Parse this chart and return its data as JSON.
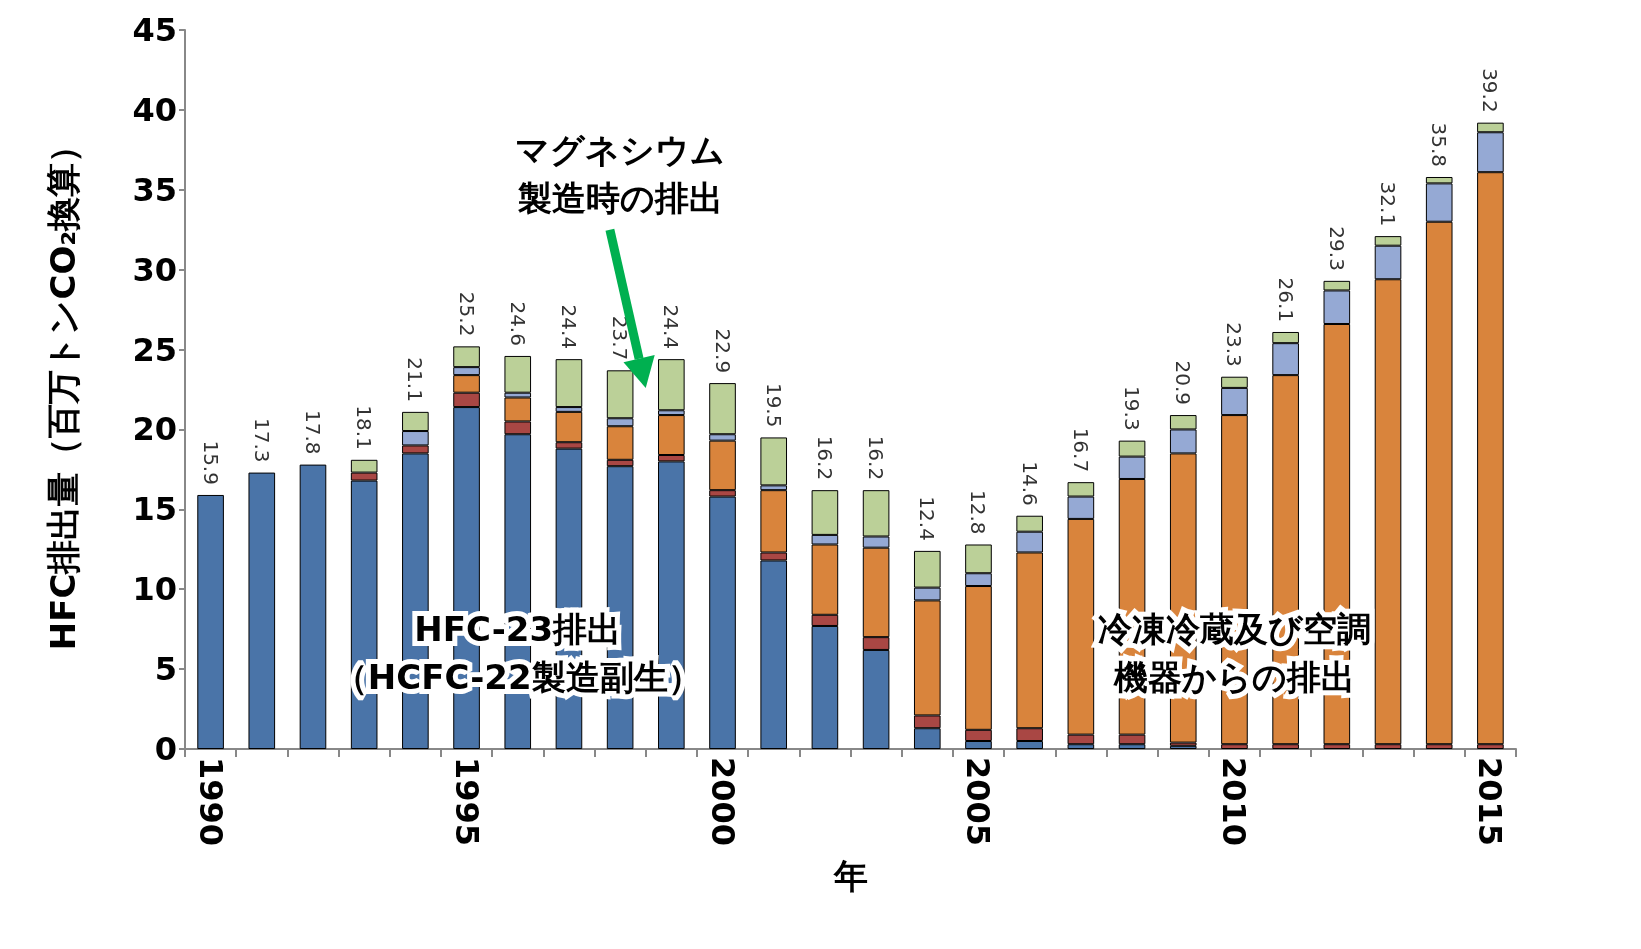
{
  "chart_data": {
    "type": "bar",
    "stacked": true,
    "xlabel": "年",
    "ylabel": "HFC排出量（百万トンCO₂換算）",
    "categories": [
      "1990",
      null,
      null,
      null,
      null,
      "1995",
      null,
      null,
      null,
      null,
      "2000",
      null,
      null,
      null,
      null,
      "2005",
      null,
      null,
      null,
      null,
      "2010",
      null,
      null,
      null,
      null,
      "2015"
    ],
    "series": [
      {
        "color": "#4a74a8",
        "values": [
          15.9,
          17.3,
          17.8,
          16.8,
          18.5,
          21.4,
          19.7,
          18.8,
          17.7,
          18.0,
          15.8,
          11.8,
          7.7,
          6.2,
          1.3,
          0.5,
          0.5,
          0.3,
          0.3,
          0.2,
          null,
          null,
          null,
          null,
          null,
          null
        ]
      },
      {
        "color": "#a94744",
        "values": [
          null,
          null,
          null,
          0.5,
          0.5,
          0.9,
          0.8,
          0.4,
          0.4,
          0.4,
          0.4,
          0.5,
          0.7,
          0.8,
          0.8,
          0.7,
          0.8,
          0.6,
          0.6,
          0.2,
          0.3,
          0.3,
          0.3,
          0.3,
          0.3,
          0.3
        ]
      },
      {
        "color": "#d9843c",
        "values": [
          null,
          null,
          null,
          null,
          null,
          1.1,
          1.5,
          1.9,
          2.1,
          2.5,
          3.1,
          3.9,
          4.4,
          5.6,
          7.2,
          9.0,
          11.0,
          13.5,
          16.0,
          18.1,
          20.6,
          23.1,
          26.3,
          29.1,
          32.7,
          35.8
        ]
      },
      {
        "color": "#95a9d4",
        "values": [
          null,
          null,
          null,
          null,
          0.9,
          0.5,
          0.3,
          0.3,
          0.5,
          0.3,
          0.4,
          0.3,
          0.6,
          0.7,
          0.8,
          0.8,
          1.3,
          1.4,
          1.4,
          1.5,
          1.7,
          2.0,
          2.1,
          2.1,
          2.4,
          2.5
        ]
      },
      {
        "color": "#bbd098",
        "values": [
          null,
          null,
          null,
          0.8,
          1.2,
          1.3,
          2.3,
          3.0,
          3.0,
          3.2,
          3.2,
          3.0,
          2.8,
          2.9,
          2.3,
          1.8,
          1.0,
          0.9,
          1.0,
          0.9,
          0.7,
          0.7,
          0.6,
          0.6,
          0.4,
          0.6
        ]
      }
    ],
    "totals": [
      "15.9",
      "17.3",
      "17.8",
      "18.1",
      "21.1",
      "25.2",
      "24.6",
      "24.4",
      "23.7",
      "24.4",
      "22.9",
      "19.5",
      "16.2",
      "16.2",
      "12.4",
      "12.8",
      "14.6",
      "16.7",
      "19.3",
      "20.9",
      "23.3",
      "26.1",
      "29.3",
      "32.1",
      "35.8",
      "39.2"
    ],
    "ylim": [
      0,
      45
    ],
    "yticks": [
      0,
      5,
      10,
      15,
      20,
      25,
      30,
      35,
      40,
      45
    ],
    "grid": false,
    "annotations": [
      "マグネシウム",
      "製造時の排出",
      "HFC-23排出",
      "（HCFC-22製造副生）",
      "冷凍冷蔵及び空調",
      "機器からの排出"
    ]
  }
}
